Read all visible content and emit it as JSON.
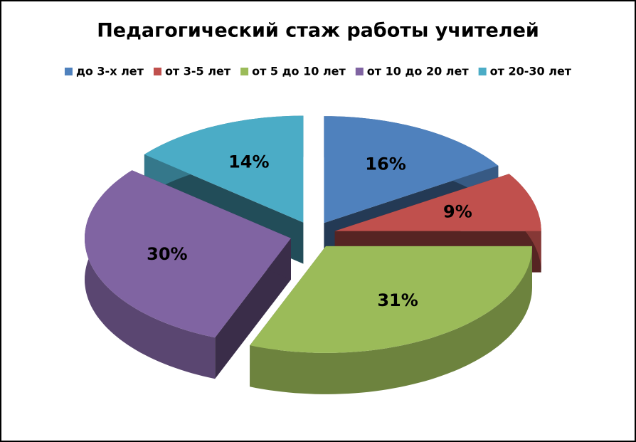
{
  "chart_data": {
    "type": "pie3d",
    "title": "Педагогический стаж работы учителей",
    "categories": [
      "до 3-х лет",
      "от 3-5 лет",
      "от 5 до 10 лет",
      "от 10 до 20 лет",
      "от 20-30 лет"
    ],
    "values": [
      16,
      9,
      31,
      30,
      14
    ],
    "value_labels": [
      "16%",
      "9%",
      "31%",
      "30%",
      "14%"
    ],
    "colors": [
      "#4f81bd",
      "#c0504d",
      "#9bbb59",
      "#8064a2",
      "#4bacc6"
    ],
    "legend": "top"
  }
}
